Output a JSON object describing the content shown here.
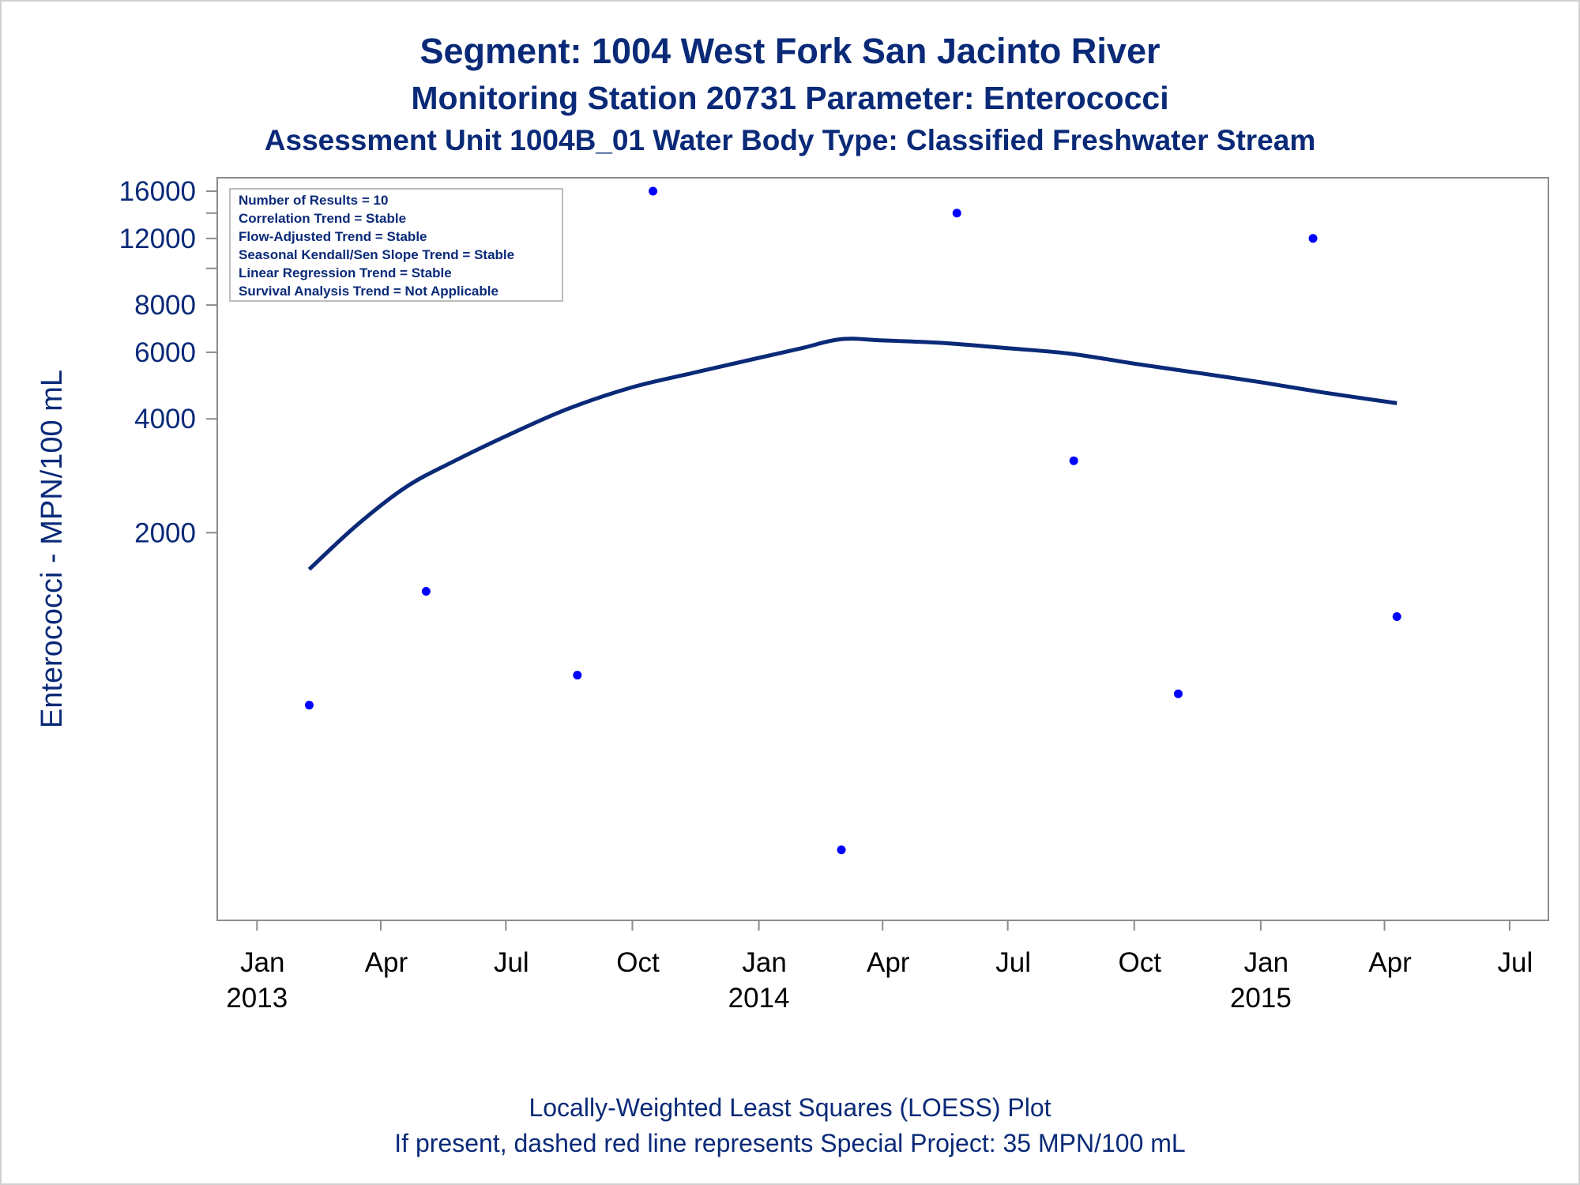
{
  "chart_data": {
    "type": "scatter",
    "title": "Segment: 1004  West Fork San Jacinto River",
    "subtitle": "Monitoring Station 20731 Parameter: Enterococci",
    "subtitle2": "Assessment Unit 1004B_01   Water Body Type: Classified Freshwater Stream",
    "ylabel": "Enterococci - MPN/100 mL",
    "xlabel": "",
    "yscale": "log",
    "ylim": [
      200,
      16000
    ],
    "y_ticks": [
      {
        "value": 16000,
        "label": "16000"
      },
      {
        "value": 14000,
        "label": ""
      },
      {
        "value": 12000,
        "label": "12000"
      },
      {
        "value": 10000,
        "label": ""
      },
      {
        "value": 8000,
        "label": "8000"
      },
      {
        "value": 6000,
        "label": "6000"
      },
      {
        "value": 4000,
        "label": "4000"
      },
      {
        "value": 2000,
        "label": "2000"
      }
    ],
    "xlim": [
      "2012-12-10",
      "2015-07-20"
    ],
    "x_ticks": [
      {
        "date": "2013-01-01",
        "label": "Jan",
        "year": "2013"
      },
      {
        "date": "2013-04-01",
        "label": "Apr",
        "year": ""
      },
      {
        "date": "2013-07-01",
        "label": "Jul",
        "year": ""
      },
      {
        "date": "2013-10-01",
        "label": "Oct",
        "year": ""
      },
      {
        "date": "2014-01-01",
        "label": "Jan",
        "year": "2014"
      },
      {
        "date": "2014-04-01",
        "label": "Apr",
        "year": ""
      },
      {
        "date": "2014-07-01",
        "label": "Jul",
        "year": ""
      },
      {
        "date": "2014-10-01",
        "label": "Oct",
        "year": ""
      },
      {
        "date": "2015-01-01",
        "label": "Jan",
        "year": "2015"
      },
      {
        "date": "2015-04-01",
        "label": "Apr",
        "year": ""
      },
      {
        "date": "2015-07-01",
        "label": "Jul",
        "year": ""
      }
    ],
    "points": [
      {
        "date": "2013-02-08",
        "value": 700
      },
      {
        "date": "2013-05-04",
        "value": 1400
      },
      {
        "date": "2013-08-22",
        "value": 840
      },
      {
        "date": "2013-10-16",
        "value": 16000
      },
      {
        "date": "2014-03-02",
        "value": 290
      },
      {
        "date": "2014-05-25",
        "value": 14000
      },
      {
        "date": "2014-08-18",
        "value": 3100
      },
      {
        "date": "2014-11-02",
        "value": 750
      },
      {
        "date": "2015-02-08",
        "value": 12000
      },
      {
        "date": "2015-04-10",
        "value": 1200
      }
    ],
    "loess": [
      {
        "date": "2013-02-08",
        "value": 1600
      },
      {
        "date": "2013-03-15",
        "value": 2100
      },
      {
        "date": "2013-04-20",
        "value": 2650
      },
      {
        "date": "2013-05-25",
        "value": 3100
      },
      {
        "date": "2013-07-01",
        "value": 3600
      },
      {
        "date": "2013-08-15",
        "value": 4250
      },
      {
        "date": "2013-10-01",
        "value": 4850
      },
      {
        "date": "2013-11-15",
        "value": 5300
      },
      {
        "date": "2014-01-01",
        "value": 5800
      },
      {
        "date": "2014-02-01",
        "value": 6150
      },
      {
        "date": "2014-03-02",
        "value": 6500
      },
      {
        "date": "2014-04-01",
        "value": 6450
      },
      {
        "date": "2014-05-15",
        "value": 6350
      },
      {
        "date": "2014-07-01",
        "value": 6150
      },
      {
        "date": "2014-08-15",
        "value": 5950
      },
      {
        "date": "2014-10-01",
        "value": 5600
      },
      {
        "date": "2014-11-15",
        "value": 5300
      },
      {
        "date": "2015-01-01",
        "value": 5000
      },
      {
        "date": "2015-02-15",
        "value": 4700
      },
      {
        "date": "2015-04-10",
        "value": 4400
      }
    ],
    "point_color": "#0000ff",
    "line_color": "#0a2a78",
    "grid": false,
    "legend": "none"
  },
  "stats_box": [
    "Number of Results = 10",
    "Correlation Trend = Stable",
    "Flow-Adjusted Trend = Stable",
    "Seasonal Kendall/Sen Slope Trend = Stable",
    "Linear Regression Trend = Stable",
    "Survival Analysis Trend = Not Applicable"
  ],
  "footnotes": [
    "Locally-Weighted Least Squares (LOESS) Plot",
    "If present, dashed red line represents Special Project: 35 MPN/100 mL"
  ]
}
